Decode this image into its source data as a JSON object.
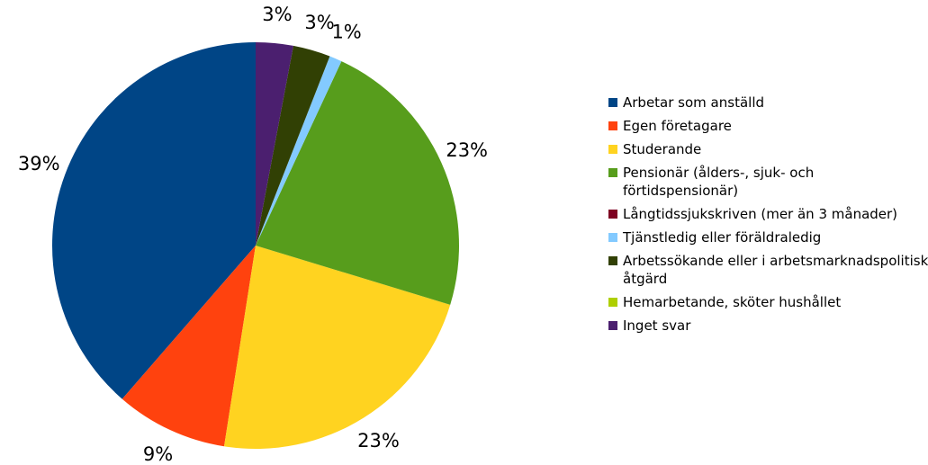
{
  "chart_data": {
    "type": "pie",
    "categories": [
      "Arbetar som anställd",
      "Egen företagare",
      "Studerande",
      "Pensionär (ålders-, sjuk- och förtidspensionär)",
      "Långtidssjukskriven (mer än 3 månader)",
      "Tjänstledig eller föräldraledig",
      "Arbetssökande eller i arbetsmarknadspolitisk åtgärd",
      "Hemarbetande, sköter hushållet",
      "Inget svar"
    ],
    "values": [
      39,
      9,
      23,
      23,
      0,
      1,
      3,
      0,
      3
    ],
    "value_labels": [
      "39%",
      "9%",
      "23%",
      "23%",
      null,
      "1%",
      "3%",
      null,
      "3%"
    ],
    "colors": [
      "#004586",
      "#ff420e",
      "#ffd320",
      "#579d1c",
      "#7e0021",
      "#83caff",
      "#314004",
      "#aecf00",
      "#4b1f6f"
    ],
    "legend": "right"
  }
}
